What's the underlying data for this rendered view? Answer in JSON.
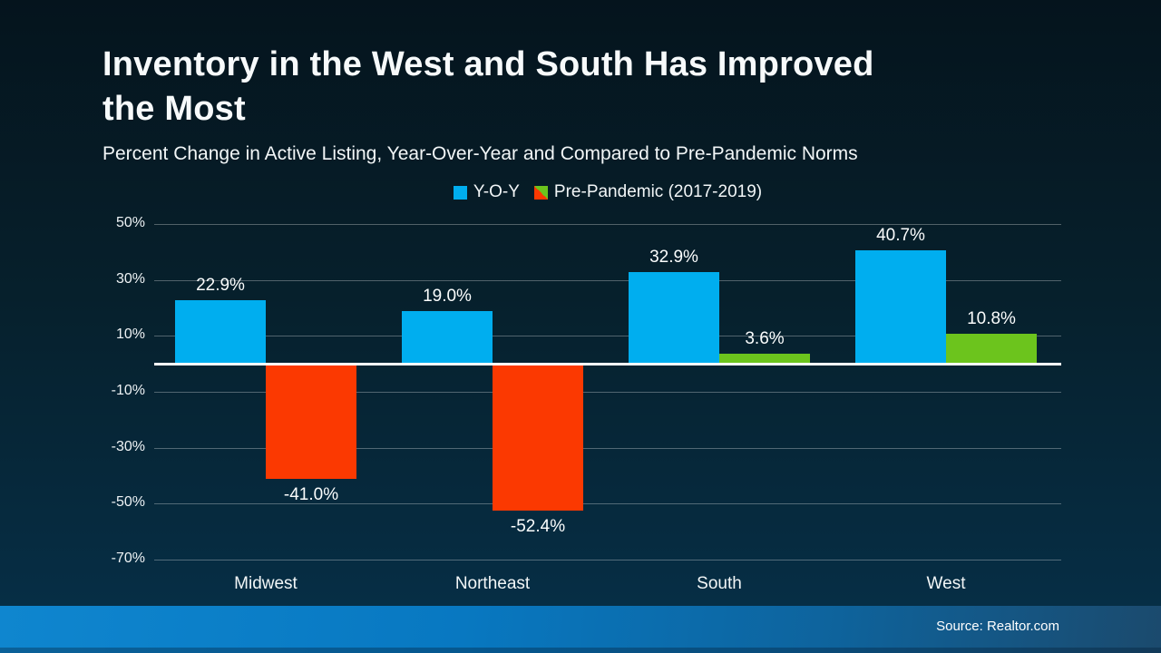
{
  "title": {
    "line1": "Inventory in the West and South Has Improved",
    "line2": "the Most",
    "full": "Inventory in the West and South Has Improved the Most"
  },
  "subtitle": "Percent Change in Active Listing, Year-Over-Year and Compared to Pre-Pandemic Norms",
  "legend": {
    "items": [
      {
        "label": "Y-O-Y",
        "swatch": "blue-square"
      },
      {
        "label": "Pre-Pandemic (2017-2019)",
        "swatch": "split-green-orange-square"
      }
    ]
  },
  "footer": {
    "source": "Source: Realtor.com"
  },
  "colors": {
    "yoy_bar": "#00AEEF",
    "prepandemic_positive": "#6CC41D",
    "prepandemic_negative": "#FB3901",
    "background_top": "#05141d",
    "background_bottom": "#063049",
    "footer_left": "#0B80C9",
    "footer_right": "#1B4A6D",
    "gridline": "rgba(255,255,255,0.30)",
    "zero_line": "#FFFFFF",
    "text": "#FFFFFF"
  },
  "chart_data": {
    "type": "bar",
    "title": "Inventory in the West and South Has Improved the Most",
    "subtitle": "Percent Change in Active Listing, Year-Over-Year and Compared to Pre-Pandemic Norms",
    "categories": [
      "Midwest",
      "Northeast",
      "South",
      "West"
    ],
    "series": [
      {
        "name": "Y-O-Y",
        "values": [
          22.9,
          19.0,
          32.9,
          40.7
        ],
        "labels": [
          "22.9%",
          "19.0%",
          "32.9%",
          "40.7%"
        ]
      },
      {
        "name": "Pre-Pandemic (2017-2019)",
        "values": [
          -41.0,
          -52.4,
          3.6,
          10.8
        ],
        "labels": [
          "-41.0%",
          "-52.4%",
          "3.6%",
          "10.8%"
        ]
      }
    ],
    "y_ticks": [
      50,
      30,
      10,
      -10,
      -30,
      -50,
      -70
    ],
    "y_tick_labels": [
      "50%",
      "30%",
      "10%",
      "-10%",
      "-30%",
      "-50%",
      "-70%"
    ],
    "ylim": [
      -70,
      50
    ],
    "grid": true,
    "legend_position": "top",
    "value_label_format": "percent_one_decimal",
    "source": "Source: Realtor.com"
  }
}
